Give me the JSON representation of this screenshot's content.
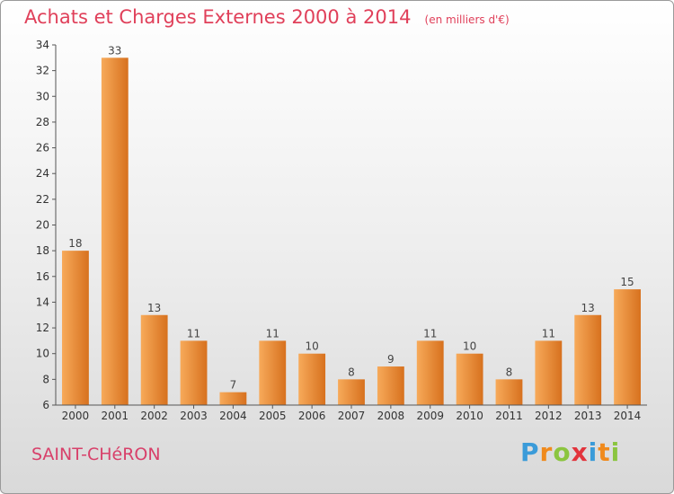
{
  "title": "Achats et Charges Externes 2000 à 2014",
  "subtitle": "(en milliers d'€)",
  "commune": "SAINT-CHéRON",
  "brand": {
    "letters": [
      "P",
      "r",
      "o",
      "x",
      "i",
      "t",
      "i"
    ],
    "colors": [
      "#3a9bd9",
      "#f08a1c",
      "#8bc53f",
      "#e2343c",
      "#3a9bd9",
      "#f08a1c",
      "#8bc53f"
    ]
  },
  "colors": {
    "bar_light": "#f7aa5a",
    "bar_dark": "#d7711e",
    "title": "#e0405a"
  },
  "chart_data": {
    "type": "bar",
    "categories": [
      "2000",
      "2001",
      "2002",
      "2003",
      "2004",
      "2005",
      "2006",
      "2007",
      "2008",
      "2009",
      "2010",
      "2011",
      "2012",
      "2013",
      "2014"
    ],
    "values": [
      18,
      33,
      13,
      11,
      7,
      11,
      10,
      8,
      9,
      11,
      10,
      8,
      11,
      13,
      15
    ],
    "value_labels": [
      "18",
      "33",
      "13",
      "11",
      "7",
      "11",
      "10",
      "8",
      "9",
      "11",
      "10",
      "8",
      "11",
      "13",
      "15"
    ],
    "title": "Achats et Charges Externes 2000 à 2014",
    "xlabel": "",
    "ylabel": "",
    "ylim": [
      6,
      34
    ],
    "yticks": [
      6,
      8,
      10,
      12,
      14,
      16,
      18,
      20,
      22,
      24,
      26,
      28,
      30,
      32,
      34
    ],
    "grid": false,
    "legend": "none"
  }
}
